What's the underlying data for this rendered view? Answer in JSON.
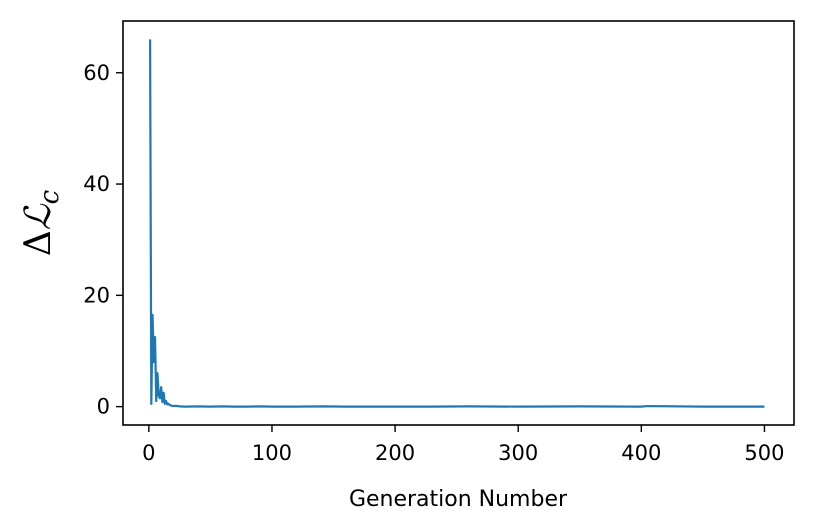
{
  "chart_data": {
    "type": "line",
    "title": "",
    "xlabel": "Generation Number",
    "ylabel": "ΔℒC",
    "ylabel_parts": {
      "delta": "Δ",
      "script_l": "ℒ",
      "subscript": "c"
    },
    "xlim": [
      -21,
      524
    ],
    "ylim": [
      -3.3,
      69.3
    ],
    "xticks": [
      0,
      100,
      200,
      300,
      400,
      500
    ],
    "yticks": [
      0,
      20,
      40,
      60
    ],
    "grid": false,
    "legend": "none",
    "series": [
      {
        "color": "#1f77b4",
        "x": [
          1,
          2,
          3,
          4,
          5,
          6,
          7,
          8,
          9,
          10,
          11,
          12,
          13,
          14,
          15,
          16,
          17,
          18,
          20,
          22,
          25,
          30,
          40,
          50,
          60,
          70,
          80,
          90,
          100,
          120,
          140,
          160,
          180,
          200,
          230,
          260,
          300,
          350,
          400,
          405,
          450,
          500
        ],
        "y": [
          66.0,
          0.5,
          16.5,
          8.0,
          12.5,
          1.0,
          6.0,
          2.0,
          1.5,
          3.5,
          0.8,
          2.5,
          0.5,
          1.0,
          0.4,
          0.5,
          0.3,
          0.2,
          0.1,
          0.15,
          0.05,
          0.0,
          0.05,
          0.0,
          0.05,
          0.0,
          0.0,
          0.05,
          0.0,
          0.0,
          0.05,
          0.0,
          0.0,
          0.0,
          0.0,
          0.05,
          0.0,
          0.05,
          0.0,
          0.1,
          0.0,
          0.0
        ]
      }
    ]
  }
}
